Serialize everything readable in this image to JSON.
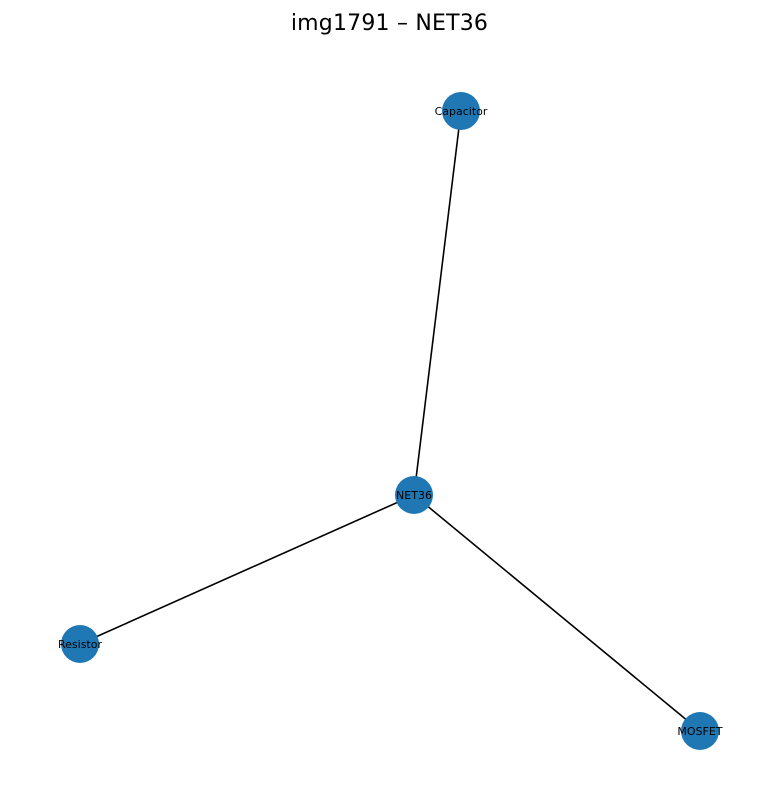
{
  "title": "img1791 – NET36",
  "colors": {
    "node": "#1f77b4",
    "edge": "#000000",
    "label": "#000000"
  },
  "nodes": [
    {
      "id": "NET36",
      "label": "NET36"
    },
    {
      "id": "Capacitor",
      "label": "Capacitor"
    },
    {
      "id": "Resistor",
      "label": "Resistor"
    },
    {
      "id": "MOSFET",
      "label": "MOSFET"
    }
  ],
  "edges": [
    {
      "source": "NET36",
      "target": "Capacitor"
    },
    {
      "source": "NET36",
      "target": "Resistor"
    },
    {
      "source": "NET36",
      "target": "MOSFET"
    }
  ]
}
